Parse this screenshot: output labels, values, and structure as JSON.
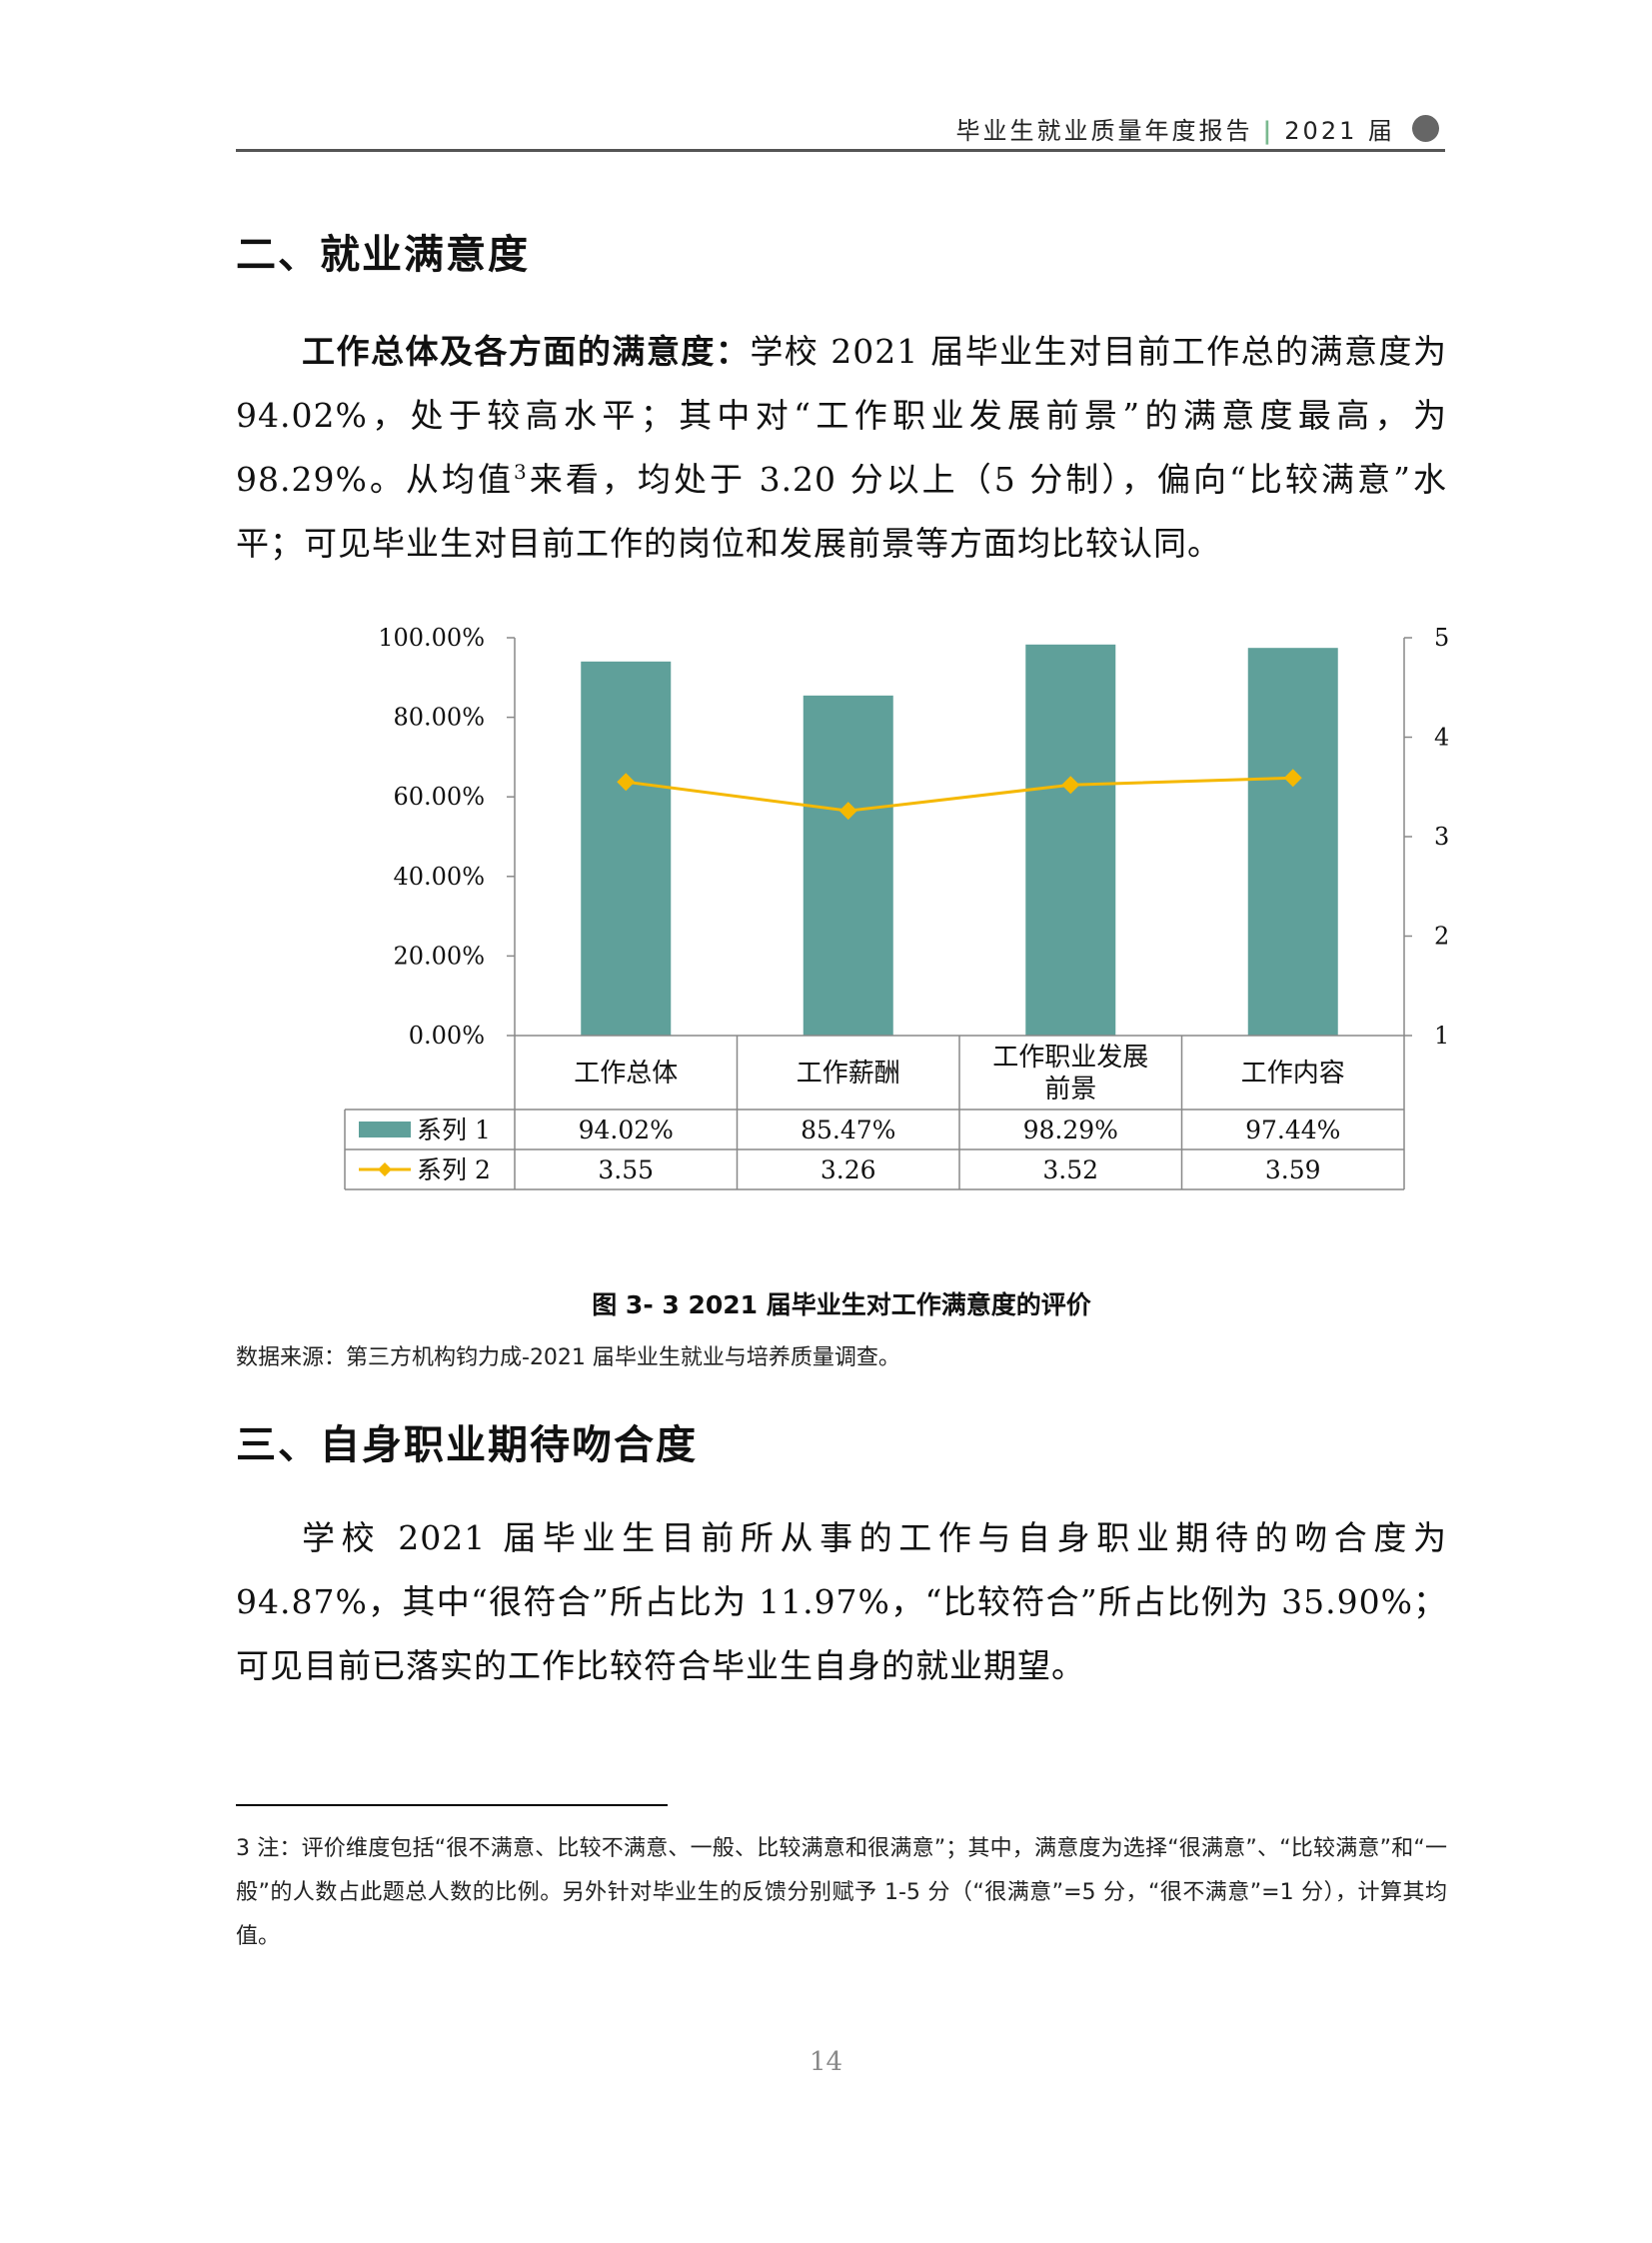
{
  "header": {
    "title": "毕业生就业质量年度报告",
    "year": "2021 届"
  },
  "section2": {
    "title": "二、就业满意度",
    "lead": "工作总体及各方面的满意度：",
    "text_a": "学校 2021 届毕业生对目前工作总的满意度为 94.02%，处于较高水平；其中对“工作职业发展前景”的满意度最高，为 98.29%。从均值",
    "footnote_ref": "3",
    "text_b": "来看，均处于 3.20 分以上（5 分制），偏向“比较满意”水平；可见毕业生对目前工作的岗位和发展前景等方面均比较认同。"
  },
  "chart_data": {
    "type": "bar",
    "categories": [
      "工作总体",
      "工作薪酬",
      "工作职业发展前景",
      "工作内容"
    ],
    "category_lines": [
      [
        "工作总体"
      ],
      [
        "工作薪酬"
      ],
      [
        "工作职业发展",
        "前景"
      ],
      [
        "工作内容"
      ]
    ],
    "series": [
      {
        "name": "系列 1",
        "type": "bar",
        "axis": "left",
        "values": [
          94.02,
          85.47,
          98.29,
          97.44
        ],
        "labels": [
          "94.02%",
          "85.47%",
          "98.29%",
          "97.44%"
        ],
        "color": "#5fa09a"
      },
      {
        "name": "系列 2",
        "type": "line",
        "axis": "right",
        "values": [
          3.55,
          3.26,
          3.52,
          3.59
        ],
        "labels": [
          "3.55",
          "3.26",
          "3.52",
          "3.59"
        ],
        "color": "#f5b800"
      }
    ],
    "left_axis": {
      "ylim": [
        0,
        100
      ],
      "ticks": [
        "0.00%",
        "20.00%",
        "40.00%",
        "60.00%",
        "80.00%",
        "100.00%"
      ],
      "tick_values": [
        0,
        20,
        40,
        60,
        80,
        100
      ]
    },
    "right_axis": {
      "ylim": [
        1,
        5
      ],
      "ticks": [
        "1.00",
        "2.00",
        "3.00",
        "4.00",
        "5.00"
      ],
      "tick_values": [
        1,
        2,
        3,
        4,
        5
      ]
    },
    "legend": "data table",
    "grid": false
  },
  "figure": {
    "caption": "图 3- 3    2021 届毕业生对工作满意度的评价",
    "source": "数据来源：第三方机构钧力成-2021 届毕业生就业与培养质量调查。"
  },
  "section3": {
    "title": "三、自身职业期待吻合度",
    "text": "学校 2021 届毕业生目前所从事的工作与自身职业期待的吻合度为 94.87%，其中“很符合”所占比为 11.97%，“比较符合”所占比例为 35.90%；可见目前已落实的工作比较符合毕业生自身的就业期望。"
  },
  "footnote": {
    "text": "3 注：评价维度包括“很不满意、比较不满意、一般、比较满意和很满意”；其中，满意度为选择“很满意”、“比较满意”和“一般”的人数占此题总人数的比例。另外针对毕业生的反馈分别赋予 1-5 分（“很满意”=5 分，“很不满意”=1 分），计算其均值。"
  },
  "page_number": "14"
}
